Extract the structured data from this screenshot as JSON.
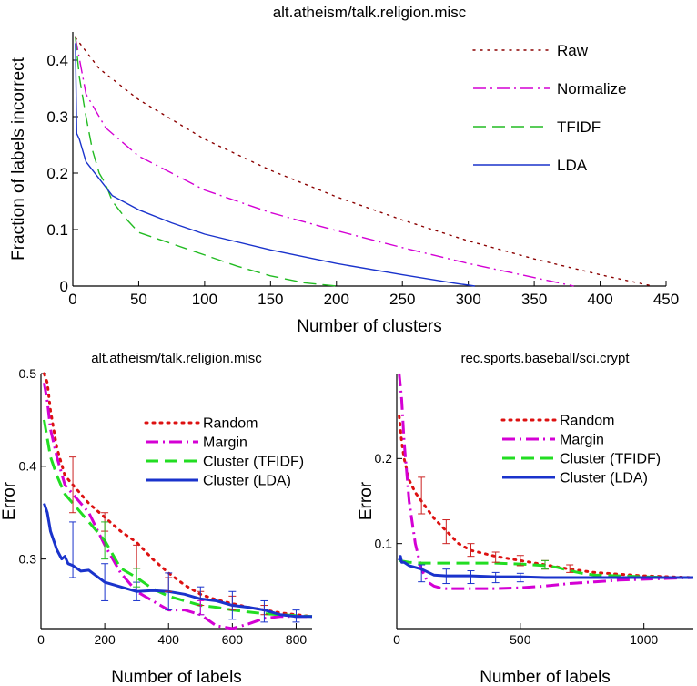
{
  "chart_data": [
    {
      "type": "line",
      "title": "alt.atheism/talk.religion.misc",
      "xlabel": "Number of clusters",
      "ylabel": "Fraction of labels incorrect",
      "xlim": [
        0,
        450
      ],
      "ylim": [
        0,
        0.45
      ],
      "xticks": [
        0,
        50,
        100,
        150,
        200,
        250,
        300,
        350,
        400,
        450
      ],
      "yticks": [
        0,
        0.1,
        0.2,
        0.3,
        0.4
      ],
      "ytick_labels": [
        "0",
        "0.1",
        "0.2",
        "0.3",
        "0.4"
      ],
      "legend_position": "top-right",
      "series": [
        {
          "name": "Raw",
          "color": "#8b0000",
          "dash": "dotted",
          "x": [
            2,
            20,
            50,
            100,
            150,
            200,
            250,
            300,
            350,
            400,
            430,
            440
          ],
          "y": [
            0.44,
            0.385,
            0.33,
            0.26,
            0.205,
            0.158,
            0.117,
            0.08,
            0.048,
            0.02,
            0.005,
            0.0
          ]
        },
        {
          "name": "Normalize",
          "color": "#d400d4",
          "dash": "dashdot",
          "x": [
            2,
            10,
            25,
            50,
            100,
            150,
            200,
            250,
            300,
            350,
            380
          ],
          "y": [
            0.44,
            0.34,
            0.28,
            0.23,
            0.17,
            0.13,
            0.098,
            0.068,
            0.04,
            0.015,
            0.0
          ]
        },
        {
          "name": "TFIDF",
          "color": "#22bb22",
          "dash": "dashed",
          "x": [
            2,
            5,
            10,
            15,
            20,
            25,
            30,
            40,
            50,
            75,
            100,
            125,
            150,
            175,
            200
          ],
          "y": [
            0.44,
            0.37,
            0.3,
            0.24,
            0.2,
            0.18,
            0.15,
            0.12,
            0.095,
            0.075,
            0.055,
            0.035,
            0.018,
            0.006,
            0.0
          ]
        },
        {
          "name": "LDA",
          "color": "#1a33cc",
          "dash": "solid",
          "x": [
            2,
            3,
            5,
            10,
            20,
            30,
            50,
            75,
            100,
            150,
            200,
            250,
            290,
            305
          ],
          "y": [
            0.43,
            0.27,
            0.26,
            0.22,
            0.19,
            0.16,
            0.135,
            0.112,
            0.092,
            0.064,
            0.04,
            0.02,
            0.005,
            0.0
          ]
        }
      ]
    },
    {
      "type": "line",
      "title": "alt.atheism/talk.religion.misc",
      "xlabel": "Number of labels",
      "ylabel": "Error",
      "xlim": [
        0,
        850
      ],
      "ylim": [
        0.225,
        0.5
      ],
      "xticks": [
        0,
        200,
        400,
        600,
        800
      ],
      "yticks": [
        0.3,
        0.4,
        0.5
      ],
      "ytick_labels": [
        "0.3",
        "0.4",
        "0.5"
      ],
      "legend_position": "top-right",
      "series": [
        {
          "name": "Random",
          "color": "#dd1111",
          "dash": "dotted",
          "x": [
            10,
            20,
            30,
            50,
            75,
            100,
            150,
            200,
            250,
            300,
            350,
            400,
            450,
            500,
            550,
            600,
            650,
            700,
            750,
            800,
            850
          ],
          "y": [
            0.5,
            0.49,
            0.46,
            0.42,
            0.39,
            0.38,
            0.36,
            0.345,
            0.33,
            0.318,
            0.3,
            0.285,
            0.272,
            0.262,
            0.256,
            0.252,
            0.248,
            0.245,
            0.242,
            0.24,
            0.238
          ]
        },
        {
          "name": "Margin",
          "color": "#d400d4",
          "dash": "dashdot",
          "x": [
            10,
            20,
            30,
            50,
            75,
            100,
            125,
            150,
            200,
            250,
            300,
            350,
            400,
            450,
            500,
            550,
            600,
            650,
            700,
            750,
            800,
            850
          ],
          "y": [
            0.49,
            0.47,
            0.44,
            0.41,
            0.38,
            0.37,
            0.36,
            0.35,
            0.315,
            0.285,
            0.265,
            0.255,
            0.245,
            0.245,
            0.24,
            0.228,
            0.225,
            0.23,
            0.236,
            0.238,
            0.238,
            0.238
          ]
        },
        {
          "name": "Cluster (TFIDF)",
          "color": "#22dd22",
          "dash": "dashed",
          "x": [
            10,
            20,
            30,
            50,
            75,
            100,
            150,
            200,
            250,
            300,
            350,
            400,
            450,
            500,
            550,
            600,
            650,
            700,
            750,
            800,
            850
          ],
          "y": [
            0.45,
            0.43,
            0.41,
            0.39,
            0.37,
            0.36,
            0.34,
            0.32,
            0.29,
            0.28,
            0.268,
            0.26,
            0.255,
            0.25,
            0.248,
            0.245,
            0.243,
            0.241,
            0.24,
            0.239,
            0.238
          ]
        },
        {
          "name": "Cluster (LDA)",
          "color": "#1a33cc",
          "dash": "solid",
          "x": [
            10,
            20,
            30,
            50,
            65,
            75,
            85,
            100,
            125,
            150,
            200,
            250,
            300,
            350,
            400,
            450,
            500,
            550,
            600,
            650,
            700,
            750,
            800,
            850
          ],
          "y": [
            0.36,
            0.35,
            0.33,
            0.31,
            0.3,
            0.303,
            0.295,
            0.293,
            0.287,
            0.288,
            0.275,
            0.27,
            0.265,
            0.266,
            0.265,
            0.262,
            0.257,
            0.255,
            0.25,
            0.248,
            0.245,
            0.24,
            0.238,
            0.238
          ]
        }
      ],
      "error_bars": [
        {
          "color": "#cc2222",
          "x": 100,
          "lo": 0.35,
          "hi": 0.41
        },
        {
          "color": "#cc2222",
          "x": 200,
          "lo": 0.33,
          "hi": 0.35
        },
        {
          "color": "#cc2222",
          "x": 300,
          "lo": 0.29,
          "hi": 0.315
        },
        {
          "color": "#cc2222",
          "x": 400,
          "lo": 0.265,
          "hi": 0.28
        },
        {
          "color": "#cc2222",
          "x": 500,
          "lo": 0.25,
          "hi": 0.265
        },
        {
          "color": "#cc2222",
          "x": 600,
          "lo": 0.245,
          "hi": 0.26
        },
        {
          "color": "#cc2222",
          "x": 700,
          "lo": 0.24,
          "hi": 0.25
        },
        {
          "color": "#1a33cc",
          "x": 100,
          "lo": 0.28,
          "hi": 0.34
        },
        {
          "color": "#1a33cc",
          "x": 200,
          "lo": 0.255,
          "hi": 0.295
        },
        {
          "color": "#1a33cc",
          "x": 300,
          "lo": 0.255,
          "hi": 0.275
        },
        {
          "color": "#1a33cc",
          "x": 400,
          "lo": 0.245,
          "hi": 0.285
        },
        {
          "color": "#1a33cc",
          "x": 500,
          "lo": 0.24,
          "hi": 0.27
        },
        {
          "color": "#1a33cc",
          "x": 600,
          "lo": 0.235,
          "hi": 0.265
        },
        {
          "color": "#1a33cc",
          "x": 700,
          "lo": 0.232,
          "hi": 0.255
        },
        {
          "color": "#1a33cc",
          "x": 800,
          "lo": 0.232,
          "hi": 0.245
        },
        {
          "color": "#22bb22",
          "x": 200,
          "lo": 0.3,
          "hi": 0.34
        },
        {
          "color": "#22bb22",
          "x": 300,
          "lo": 0.27,
          "hi": 0.29
        },
        {
          "color": "#d400d4",
          "x": 500,
          "lo": 0.24,
          "hi": 0.255
        }
      ]
    },
    {
      "type": "line",
      "title": "rec.sports.baseball/sci.crypt",
      "xlabel": "Number of labels",
      "ylabel": "Error",
      "xlim": [
        0,
        1200
      ],
      "ylim": [
        0,
        0.3
      ],
      "xticks": [
        0,
        500,
        1000
      ],
      "yticks": [
        0.1,
        0.2
      ],
      "ytick_labels": [
        "0.1",
        "0.2"
      ],
      "legend_position": "top-right",
      "series": [
        {
          "name": "Random",
          "color": "#dd1111",
          "dash": "dotted",
          "x": [
            10,
            20,
            30,
            50,
            75,
            100,
            150,
            200,
            250,
            300,
            400,
            500,
            600,
            700,
            800,
            900,
            1000,
            1100,
            1200
          ],
          "y": [
            0.25,
            0.22,
            0.2,
            0.175,
            0.16,
            0.15,
            0.13,
            0.115,
            0.1,
            0.092,
            0.085,
            0.08,
            0.075,
            0.07,
            0.066,
            0.064,
            0.062,
            0.061,
            0.06
          ]
        },
        {
          "name": "Margin",
          "color": "#d400d4",
          "dash": "dashdot",
          "x": [
            10,
            20,
            30,
            50,
            75,
            100,
            125,
            150,
            175,
            200,
            300,
            400,
            500,
            600,
            700,
            800,
            900,
            1000,
            1100,
            1200
          ],
          "y": [
            0.3,
            0.27,
            0.22,
            0.15,
            0.1,
            0.07,
            0.055,
            0.05,
            0.048,
            0.047,
            0.047,
            0.047,
            0.048,
            0.05,
            0.053,
            0.055,
            0.057,
            0.058,
            0.059,
            0.06
          ]
        },
        {
          "name": "Cluster (TFIDF)",
          "color": "#22dd22",
          "dash": "dashed",
          "x": [
            10,
            50,
            100,
            150,
            200,
            300,
            400,
            500,
            600,
            650,
            700,
            750,
            800,
            900,
            1000,
            1100,
            1200
          ],
          "y": [
            0.08,
            0.078,
            0.077,
            0.077,
            0.077,
            0.077,
            0.077,
            0.076,
            0.074,
            0.072,
            0.068,
            0.065,
            0.063,
            0.062,
            0.061,
            0.06,
            0.06
          ]
        },
        {
          "name": "Cluster (LDA)",
          "color": "#1a33cc",
          "dash": "solid",
          "x": [
            10,
            15,
            20,
            30,
            50,
            100,
            150,
            200,
            300,
            400,
            500,
            600,
            700,
            800,
            900,
            1000,
            1100,
            1200
          ],
          "y": [
            0.08,
            0.085,
            0.078,
            0.078,
            0.074,
            0.07,
            0.063,
            0.062,
            0.062,
            0.061,
            0.061,
            0.06,
            0.06,
            0.06,
            0.06,
            0.06,
            0.06,
            0.06
          ]
        }
      ],
      "error_bars": [
        {
          "color": "#cc2222",
          "x": 100,
          "lo": 0.135,
          "hi": 0.178
        },
        {
          "color": "#cc2222",
          "x": 200,
          "lo": 0.1,
          "hi": 0.128
        },
        {
          "color": "#cc2222",
          "x": 300,
          "lo": 0.085,
          "hi": 0.1
        },
        {
          "color": "#cc2222",
          "x": 400,
          "lo": 0.078,
          "hi": 0.09
        },
        {
          "color": "#cc2222",
          "x": 500,
          "lo": 0.074,
          "hi": 0.086
        },
        {
          "color": "#cc2222",
          "x": 600,
          "lo": 0.07,
          "hi": 0.08
        },
        {
          "color": "#cc2222",
          "x": 700,
          "lo": 0.066,
          "hi": 0.075
        },
        {
          "color": "#1a33cc",
          "x": 100,
          "lo": 0.055,
          "hi": 0.075
        },
        {
          "color": "#1a33cc",
          "x": 200,
          "lo": 0.053,
          "hi": 0.07
        },
        {
          "color": "#1a33cc",
          "x": 300,
          "lo": 0.053,
          "hi": 0.068
        },
        {
          "color": "#1a33cc",
          "x": 400,
          "lo": 0.054,
          "hi": 0.066
        },
        {
          "color": "#1a33cc",
          "x": 500,
          "lo": 0.055,
          "hi": 0.065
        },
        {
          "color": "#22bb22",
          "x": 600,
          "lo": 0.07,
          "hi": 0.08
        }
      ]
    }
  ]
}
